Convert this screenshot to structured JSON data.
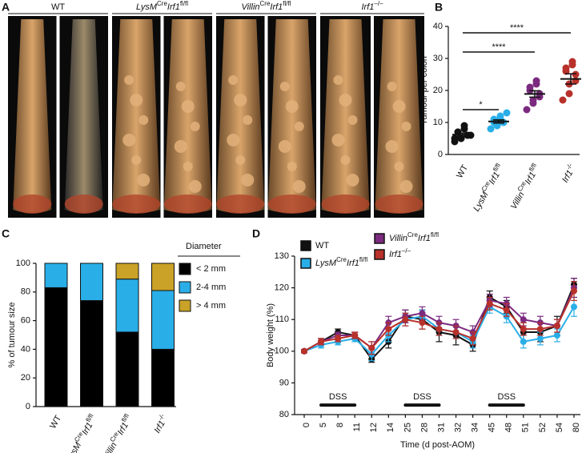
{
  "panel_a": {
    "label": "A",
    "labels": [
      [
        "WT"
      ],
      [
        "LysM",
        "Cre",
        "Irf1",
        "fl/fl"
      ],
      [
        "Villin",
        "Cre",
        "Irf1",
        "fl/fl"
      ],
      [
        "Irf1",
        "–/–"
      ]
    ]
  },
  "chart_data": [
    {
      "type": "scatter",
      "label": "B",
      "ylabel": "Tumour per colon",
      "categories": [
        [
          "WT"
        ],
        [
          "LysM",
          "Cre",
          "Irf1",
          "fl/fl"
        ],
        [
          "Villin",
          "Cre",
          "Irf1",
          "fl/fl"
        ],
        [
          "Irf1",
          "-/-"
        ]
      ],
      "series": [
        {
          "color": "#111111",
          "values": [
            4,
            5,
            5,
            6,
            6,
            7,
            7,
            8,
            9,
            6,
            5
          ],
          "mean": 6.2,
          "sem": 0.5
        },
        {
          "color": "#29aee8",
          "values": [
            8,
            9,
            9,
            10,
            10,
            10,
            11,
            11,
            12,
            13
          ],
          "mean": 10.3,
          "sem": 0.5
        },
        {
          "color": "#7b2a7f",
          "values": [
            14,
            16,
            17,
            18,
            19,
            20,
            21,
            22,
            23
          ],
          "mean": 18.9,
          "sem": 1
        },
        {
          "color": "#b8312b",
          "values": [
            17,
            19,
            22,
            23,
            25,
            26,
            27,
            28,
            29
          ],
          "mean": 23.6,
          "sem": 1.6
        }
      ],
      "annotations": [
        {
          "text": "*",
          "from": 0,
          "to": 1,
          "y": 14
        },
        {
          "text": "****",
          "from": 0,
          "to": 2,
          "y": 32
        },
        {
          "text": "****",
          "from": 0,
          "to": 3,
          "y": 38
        }
      ],
      "ylim": [
        0,
        40
      ],
      "yticks": [
        0,
        10,
        20,
        30,
        40
      ]
    },
    {
      "type": "stacked_bar",
      "label": "C",
      "ylabel": "% of tumour size",
      "legend_title": "Diameter",
      "categories": [
        [
          "WT"
        ],
        [
          "LysM",
          "Cre",
          "Irf1",
          "fl/fl"
        ],
        [
          "Villin",
          "Cre",
          "Irf1",
          "fl/fl"
        ],
        [
          "Irf1",
          "-/-"
        ]
      ],
      "series": [
        {
          "name": "< 2 mm",
          "color": "#000000",
          "values": [
            83,
            74,
            52,
            40
          ]
        },
        {
          "name": "2-4 mm",
          "color": "#29aee8",
          "values": [
            17,
            26,
            37,
            41
          ]
        },
        {
          "name": "> 4 mm",
          "color": "#c9a227",
          "values": [
            0,
            0,
            11,
            19
          ]
        }
      ],
      "ylim": [
        0,
        100
      ],
      "yticks": [
        0,
        20,
        40,
        60,
        80,
        100
      ]
    },
    {
      "type": "line",
      "label": "D",
      "ylabel": "Body weight (%)",
      "xlabel": "Time (d post-AOM)",
      "categories": [
        "0",
        "5",
        "8",
        "11",
        "12",
        "14",
        "25",
        "28",
        "31",
        "32",
        "34",
        "45",
        "48",
        "51",
        "52",
        "54",
        "80"
      ],
      "series": [
        {
          "name": [
            "WT"
          ],
          "color": "#111111",
          "values": [
            100,
            103,
            106,
            105,
            97.5,
            103,
            111,
            110,
            106,
            105,
            102,
            117,
            114,
            106,
            106,
            108,
            121
          ],
          "errors": [
            0.5,
            1,
            1,
            1,
            1,
            2,
            2,
            3,
            3,
            3,
            2,
            2,
            2,
            3,
            3,
            3,
            2
          ]
        },
        {
          "name": [
            "LysM",
            "Cre",
            "Irf1",
            "fl/fl"
          ],
          "color": "#29aee8",
          "values": [
            100,
            102,
            103,
            104,
            99,
            105,
            110,
            111,
            107,
            106,
            103,
            114,
            111,
            103,
            104,
            105,
            114
          ],
          "errors": [
            0.5,
            1,
            1,
            1,
            2,
            2,
            2,
            2,
            2,
            2,
            2,
            2,
            2,
            2,
            2,
            2,
            3
          ]
        },
        {
          "name": [
            "Villin",
            "Cre",
            "Irf1",
            "fl/fl"
          ],
          "color": "#7b2a7f",
          "values": [
            100,
            103,
            105,
            105,
            101,
            109,
            111,
            112,
            109,
            108,
            106,
            116,
            115,
            110,
            109,
            108,
            120
          ],
          "errors": [
            0.5,
            1,
            1,
            1,
            2,
            2,
            2,
            2,
            2,
            2,
            2,
            2,
            2,
            2,
            2,
            2,
            3
          ]
        },
        {
          "name": [
            "Irf1",
            "–/–"
          ],
          "color": "#b8312b",
          "values": [
            100,
            103,
            104,
            105,
            101,
            107,
            110,
            109,
            107,
            106,
            104,
            115,
            113,
            107,
            107,
            108,
            119
          ],
          "errors": [
            0.5,
            1,
            1,
            1,
            2,
            2,
            2,
            2,
            2,
            2,
            2,
            2,
            2,
            2,
            2,
            2,
            3
          ]
        }
      ],
      "annotations": [
        {
          "text": "DSS",
          "from": 1,
          "to": 3,
          "y": 83
        },
        {
          "text": "DSS",
          "from": 6,
          "to": 8,
          "y": 83
        },
        {
          "text": "DSS",
          "from": 11,
          "to": 13,
          "y": 83
        }
      ],
      "ylim": [
        80,
        130
      ],
      "yticks": [
        80,
        90,
        100,
        110,
        120,
        130
      ]
    }
  ]
}
